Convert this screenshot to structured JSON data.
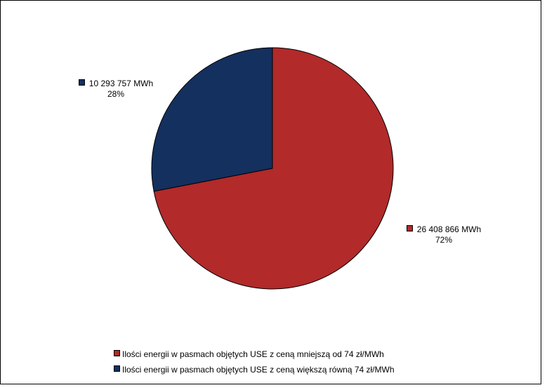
{
  "chart_data": {
    "type": "pie",
    "title": "",
    "series": [
      {
        "name": "Ilości energii w pasmach objętych USE z ceną mniejszą od 74 zł/MWh",
        "value": 26408866,
        "value_label": "26 408 866 MWh",
        "percent_label": "72%",
        "color": "#B22A2A"
      },
      {
        "name": "Ilości energii w pasmach objętych USE z ceną większą równą 74 zł/MWh",
        "value": 10293757,
        "value_label": "10 293 757 MWh",
        "percent_label": "28%",
        "color": "#14305E"
      }
    ],
    "legend_placement": "bottom",
    "start_angle": "12 o'clock",
    "direction": "clockwise"
  }
}
